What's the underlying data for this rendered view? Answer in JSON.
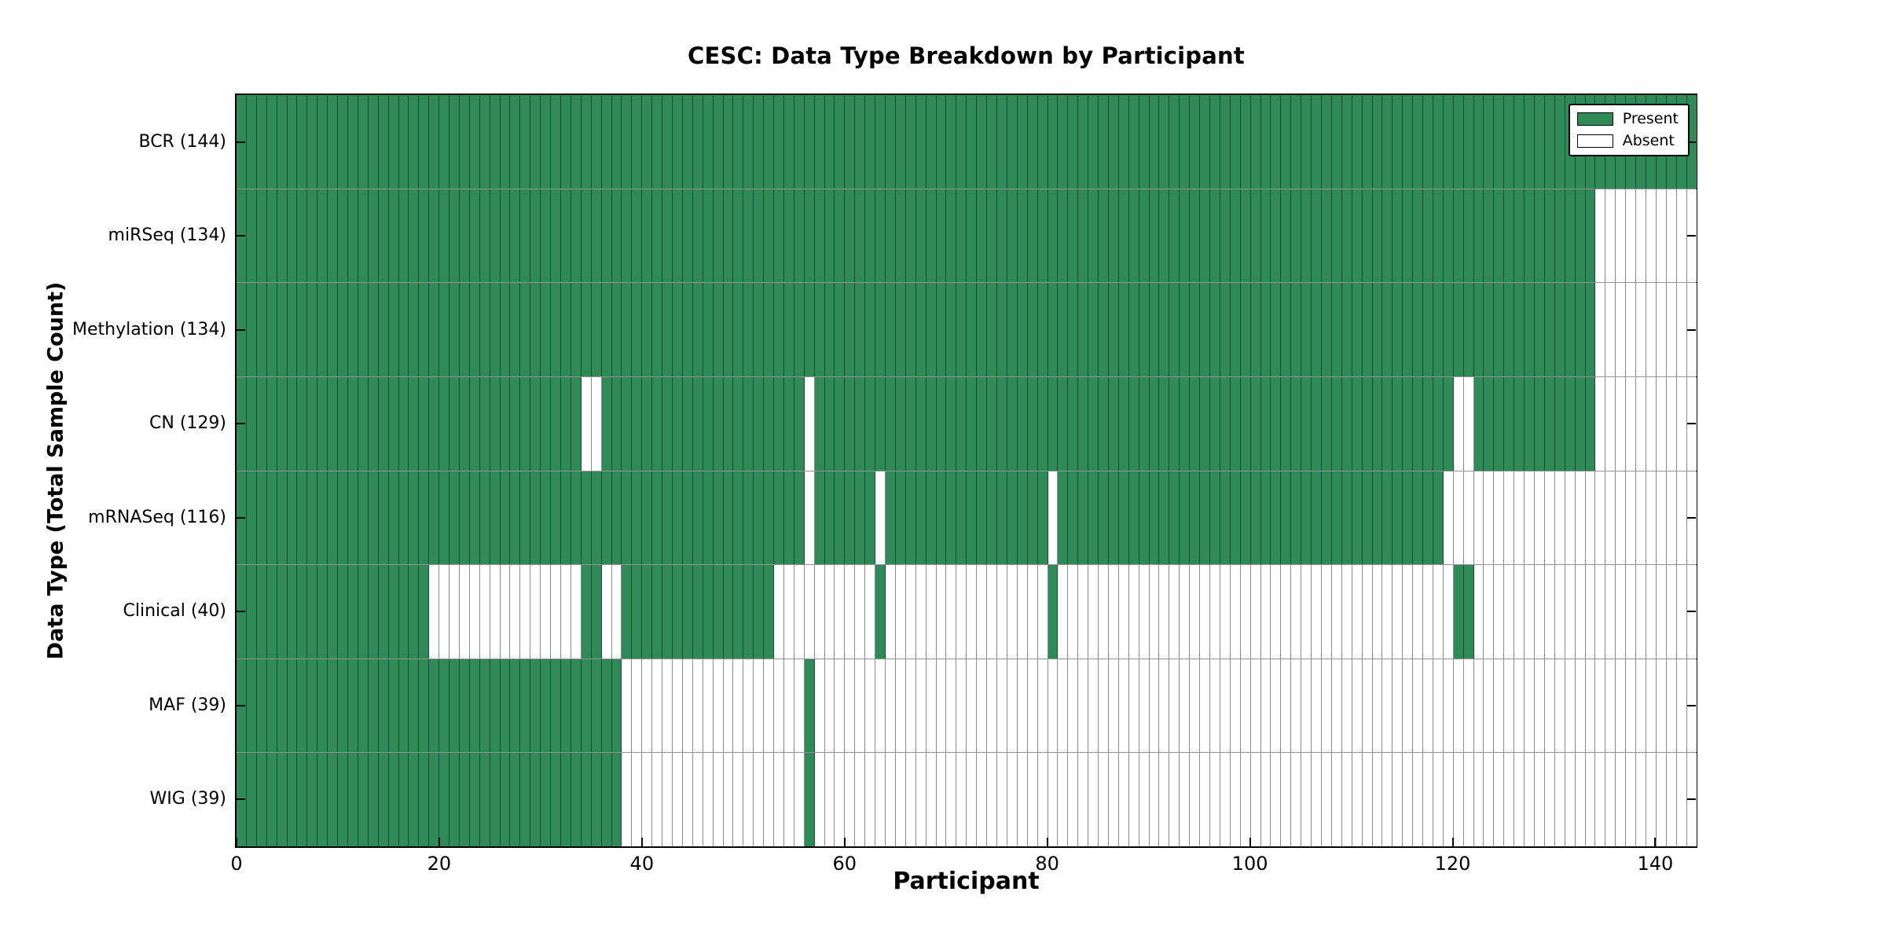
{
  "chart_data": {
    "type": "heatmap",
    "title": "CESC: Data Type Breakdown by Participant",
    "xlabel": "Participant",
    "ylabel": "Data Type (Total Sample Count)",
    "x_ticks": [
      0,
      20,
      40,
      60,
      80,
      100,
      120,
      140
    ],
    "xlim": [
      0,
      144
    ],
    "n_participants": 144,
    "grid": true,
    "legend_position": "upper right",
    "colors": {
      "present": "#2e8b57",
      "absent": "#ffffff"
    },
    "legend": [
      {
        "label": "Present",
        "key": "present"
      },
      {
        "label": "Absent",
        "key": "absent"
      }
    ],
    "rows": [
      {
        "label": "BCR (144)",
        "name": "BCR",
        "total": 144,
        "present_ranges": [
          [
            0,
            143
          ]
        ]
      },
      {
        "label": "miRSeq (134)",
        "name": "miRSeq",
        "total": 134,
        "present_ranges": [
          [
            0,
            133
          ]
        ]
      },
      {
        "label": "Methylation (134)",
        "name": "Methylation",
        "total": 134,
        "present_ranges": [
          [
            0,
            133
          ]
        ]
      },
      {
        "label": "CN (129)",
        "name": "CN",
        "total": 129,
        "present_ranges": [
          [
            0,
            33
          ],
          [
            36,
            55
          ],
          [
            57,
            119
          ],
          [
            122,
            133
          ]
        ]
      },
      {
        "label": "mRNASeq (116)",
        "name": "mRNASeq",
        "total": 116,
        "present_ranges": [
          [
            0,
            55
          ],
          [
            57,
            62
          ],
          [
            64,
            79
          ],
          [
            81,
            118
          ]
        ]
      },
      {
        "label": "Clinical (40)",
        "name": "Clinical",
        "total": 40,
        "present_ranges": [
          [
            0,
            18
          ],
          [
            34,
            35
          ],
          [
            38,
            52
          ],
          [
            63,
            63
          ],
          [
            80,
            80
          ],
          [
            120,
            121
          ]
        ]
      },
      {
        "label": "MAF (39)",
        "name": "MAF",
        "total": 39,
        "present_ranges": [
          [
            0,
            37
          ],
          [
            56,
            56
          ]
        ]
      },
      {
        "label": "WIG (39)",
        "name": "WIG",
        "total": 39,
        "present_ranges": [
          [
            0,
            37
          ],
          [
            56,
            56
          ]
        ]
      }
    ]
  }
}
